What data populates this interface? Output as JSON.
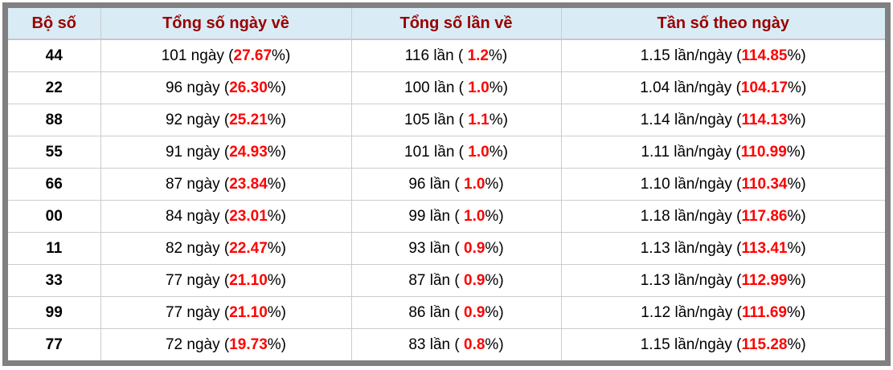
{
  "colors": {
    "frame": "#808080",
    "header_bg": "#d9ecf5",
    "header_text": "#990000",
    "header_border": "#c6c6c6",
    "cell_border": "#cccccc",
    "body_text": "#000000",
    "highlight": "#ff0000"
  },
  "chart_data": {
    "type": "table",
    "title": "",
    "columns": [
      "Bộ số",
      "Tổng số ngày về",
      "Tổng số lần về",
      "Tần số theo ngày"
    ],
    "rows": [
      {
        "pair": "44",
        "days": 101,
        "days_pct": 27.67,
        "times": 116,
        "times_pct": 1.2,
        "freq": 1.15,
        "freq_pct": 114.85,
        "cells": [
          {
            "pre": "101 ngày (",
            "hl": "27.67",
            "post": "%)"
          },
          {
            "pre": "116 lần ( ",
            "hl": "1.2",
            "post": "%)"
          },
          {
            "pre": "1.15 lần/ngày (",
            "hl": "114.85",
            "post": "%)"
          }
        ]
      },
      {
        "pair": "22",
        "days": 96,
        "days_pct": 26.3,
        "times": 100,
        "times_pct": 1.0,
        "freq": 1.04,
        "freq_pct": 104.17,
        "cells": [
          {
            "pre": "96 ngày (",
            "hl": "26.30",
            "post": "%)"
          },
          {
            "pre": "100 lần ( ",
            "hl": "1.0",
            "post": "%)"
          },
          {
            "pre": "1.04 lần/ngày (",
            "hl": "104.17",
            "post": "%)"
          }
        ]
      },
      {
        "pair": "88",
        "days": 92,
        "days_pct": 25.21,
        "times": 105,
        "times_pct": 1.1,
        "freq": 1.14,
        "freq_pct": 114.13,
        "cells": [
          {
            "pre": "92 ngày (",
            "hl": "25.21",
            "post": "%)"
          },
          {
            "pre": "105 lần ( ",
            "hl": "1.1",
            "post": "%)"
          },
          {
            "pre": "1.14 lần/ngày (",
            "hl": "114.13",
            "post": "%)"
          }
        ]
      },
      {
        "pair": "55",
        "days": 91,
        "days_pct": 24.93,
        "times": 101,
        "times_pct": 1.0,
        "freq": 1.11,
        "freq_pct": 110.99,
        "cells": [
          {
            "pre": "91 ngày (",
            "hl": "24.93",
            "post": "%)"
          },
          {
            "pre": "101 lần ( ",
            "hl": "1.0",
            "post": "%)"
          },
          {
            "pre": "1.11 lần/ngày (",
            "hl": "110.99",
            "post": "%)"
          }
        ]
      },
      {
        "pair": "66",
        "days": 87,
        "days_pct": 23.84,
        "times": 96,
        "times_pct": 1.0,
        "freq": 1.1,
        "freq_pct": 110.34,
        "cells": [
          {
            "pre": "87 ngày (",
            "hl": "23.84",
            "post": "%)"
          },
          {
            "pre": "96 lần ( ",
            "hl": "1.0",
            "post": "%)"
          },
          {
            "pre": "1.10 lần/ngày (",
            "hl": "110.34",
            "post": "%)"
          }
        ]
      },
      {
        "pair": "00",
        "days": 84,
        "days_pct": 23.01,
        "times": 99,
        "times_pct": 1.0,
        "freq": 1.18,
        "freq_pct": 117.86,
        "cells": [
          {
            "pre": "84 ngày (",
            "hl": "23.01",
            "post": "%)"
          },
          {
            "pre": "99 lần ( ",
            "hl": "1.0",
            "post": "%)"
          },
          {
            "pre": "1.18 lần/ngày (",
            "hl": "117.86",
            "post": "%)"
          }
        ]
      },
      {
        "pair": "11",
        "days": 82,
        "days_pct": 22.47,
        "times": 93,
        "times_pct": 0.9,
        "freq": 1.13,
        "freq_pct": 113.41,
        "cells": [
          {
            "pre": "82 ngày (",
            "hl": "22.47",
            "post": "%)"
          },
          {
            "pre": "93 lần ( ",
            "hl": "0.9",
            "post": "%)"
          },
          {
            "pre": "1.13 lần/ngày (",
            "hl": "113.41",
            "post": "%)"
          }
        ]
      },
      {
        "pair": "33",
        "days": 77,
        "days_pct": 21.1,
        "times": 87,
        "times_pct": 0.9,
        "freq": 1.13,
        "freq_pct": 112.99,
        "cells": [
          {
            "pre": "77 ngày (",
            "hl": "21.10",
            "post": "%)"
          },
          {
            "pre": "87 lần ( ",
            "hl": "0.9",
            "post": "%)"
          },
          {
            "pre": "1.13 lần/ngày (",
            "hl": "112.99",
            "post": "%)"
          }
        ]
      },
      {
        "pair": "99",
        "days": 77,
        "days_pct": 21.1,
        "times": 86,
        "times_pct": 0.9,
        "freq": 1.12,
        "freq_pct": 111.69,
        "cells": [
          {
            "pre": "77 ngày (",
            "hl": "21.10",
            "post": "%)"
          },
          {
            "pre": "86 lần ( ",
            "hl": "0.9",
            "post": "%)"
          },
          {
            "pre": "1.12 lần/ngày (",
            "hl": "111.69",
            "post": "%)"
          }
        ]
      },
      {
        "pair": "77",
        "days": 72,
        "days_pct": 19.73,
        "times": 83,
        "times_pct": 0.8,
        "freq": 1.15,
        "freq_pct": 115.28,
        "cells": [
          {
            "pre": "72 ngày (",
            "hl": "19.73",
            "post": "%)"
          },
          {
            "pre": "83 lần ( ",
            "hl": "0.8",
            "post": "%)"
          },
          {
            "pre": "1.15 lần/ngày (",
            "hl": "115.28",
            "post": "%)"
          }
        ]
      }
    ]
  }
}
